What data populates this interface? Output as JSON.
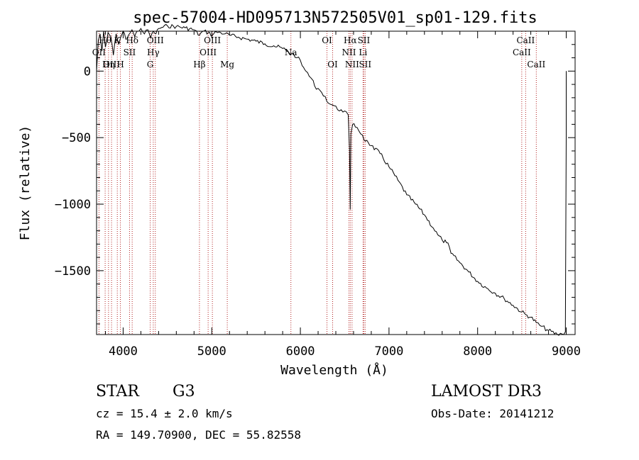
{
  "chart_data": {
    "type": "line",
    "title": "spec-57004-HD095713N572505V01_sp01-129.fits",
    "xlabel": "Wavelength (Å)",
    "ylabel": "Flux (relative)",
    "xlim": [
      3700,
      9100
    ],
    "ylim": [
      -1980,
      300
    ],
    "xticks": [
      4000,
      5000,
      6000,
      7000,
      8000,
      9000
    ],
    "yticks": [
      0,
      -500,
      -1000,
      -1500
    ],
    "series": [
      {
        "name": "spectrum",
        "color": "#000000",
        "x": [
          3700,
          3720,
          3740,
          3760,
          3780,
          3800,
          3830,
          3860,
          3890,
          3920,
          3950,
          3970,
          4000,
          4030,
          4060,
          4100,
          4130,
          4160,
          4200,
          4240,
          4280,
          4310,
          4340,
          4370,
          4400,
          4450,
          4500,
          4600,
          4700,
          4800,
          4861,
          4900,
          4960,
          5007,
          5050,
          5100,
          5150,
          5200,
          5300,
          5400,
          5500,
          5600,
          5700,
          5800,
          5860,
          5890,
          5920,
          5960,
          6000,
          6020,
          6050,
          6080,
          6100,
          6130,
          6160,
          6200,
          6240,
          6280,
          6300,
          6340,
          6380,
          6420,
          6460,
          6500,
          6540,
          6555,
          6563,
          6570,
          6590,
          6620,
          6660,
          6700,
          6720,
          6750,
          6800,
          6900,
          7000,
          7100,
          7200,
          7300,
          7400,
          7500,
          7550,
          7600,
          7650,
          7680,
          7700,
          7800,
          7900,
          8000,
          8100,
          8200,
          8300,
          8400,
          8498,
          8542,
          8600,
          8662,
          8700,
          8800,
          8900,
          8950,
          8990,
          9000,
          9000
        ],
        "y": [
          0,
          230,
          280,
          150,
          300,
          180,
          290,
          260,
          120,
          280,
          200,
          250,
          300,
          240,
          270,
          310,
          260,
          300,
          320,
          280,
          310,
          250,
          300,
          280,
          320,
          330,
          340,
          335,
          325,
          310,
          270,
          300,
          290,
          270,
          295,
          290,
          280,
          270,
          255,
          240,
          225,
          205,
          190,
          170,
          150,
          120,
          135,
          100,
          80,
          40,
          10,
          -10,
          -40,
          -60,
          -110,
          -130,
          -160,
          -190,
          -230,
          -250,
          -260,
          -290,
          -290,
          -300,
          -330,
          -600,
          -1040,
          -470,
          -400,
          -420,
          -450,
          -480,
          -520,
          -520,
          -560,
          -620,
          -720,
          -820,
          -930,
          -1000,
          -1080,
          -1180,
          -1230,
          -1270,
          -1290,
          -1320,
          -1370,
          -1440,
          -1510,
          -1580,
          -1630,
          -1670,
          -1710,
          -1760,
          -1810,
          -1830,
          -1850,
          -1890,
          -1910,
          -1950,
          -1980,
          -1975,
          -1960,
          -480,
          0
        ]
      }
    ],
    "lines": [
      {
        "label": "OII",
        "x": 3727,
        "level": 2
      },
      {
        "label": "Hθ",
        "x": 3797,
        "level": 1
      },
      {
        "label": "OIII",
        "x": 3869,
        "level": 3
      },
      {
        "label": "Hη",
        "x": 3835,
        "level": 3
      },
      {
        "label": "K",
        "x": 3934,
        "level": 1
      },
      {
        "label": "H",
        "x": 3969,
        "level": 3
      },
      {
        "label": "SII",
        "x": 4072,
        "level": 2
      },
      {
        "label": "Hδ",
        "x": 4102,
        "level": 1
      },
      {
        "label": "G",
        "x": 4305,
        "level": 3
      },
      {
        "label": "Hγ",
        "x": 4340,
        "level": 2
      },
      {
        "label": "OIII",
        "x": 4363,
        "level": 1
      },
      {
        "label": "Hβ",
        "x": 4861,
        "level": 3
      },
      {
        "label": "OIII",
        "x": 4959,
        "level": 2
      },
      {
        "label": "OIII",
        "x": 5007,
        "level": 1
      },
      {
        "label": "Mg",
        "x": 5175,
        "level": 3
      },
      {
        "label": "Na",
        "x": 5893,
        "level": 2
      },
      {
        "label": "OI",
        "x": 6300,
        "level": 1
      },
      {
        "label": "OI",
        "x": 6364,
        "level": 3
      },
      {
        "label": "NII",
        "x": 6548,
        "level": 2
      },
      {
        "label": "Hα",
        "x": 6563,
        "level": 1
      },
      {
        "label": "NII",
        "x": 6583,
        "level": 3
      },
      {
        "label": "Li",
        "x": 6707,
        "level": 2
      },
      {
        "label": "SII",
        "x": 6716,
        "level": 1
      },
      {
        "label": "SII",
        "x": 6731,
        "level": 3
      },
      {
        "label": "CaII",
        "x": 8498,
        "level": 2
      },
      {
        "label": "CaII",
        "x": 8542,
        "level": 1
      },
      {
        "label": "CaII",
        "x": 8662,
        "level": 3
      }
    ],
    "line_color": "#b22222"
  },
  "info": {
    "object_class": "STAR",
    "subclass": "G3",
    "redshift": "cz = 15.4 ± 2.0 km/s",
    "coords": "RA = 149.70900, DEC =  55.82558",
    "survey": "LAMOST DR3",
    "obs_date": "Obs-Date: 20141212"
  }
}
